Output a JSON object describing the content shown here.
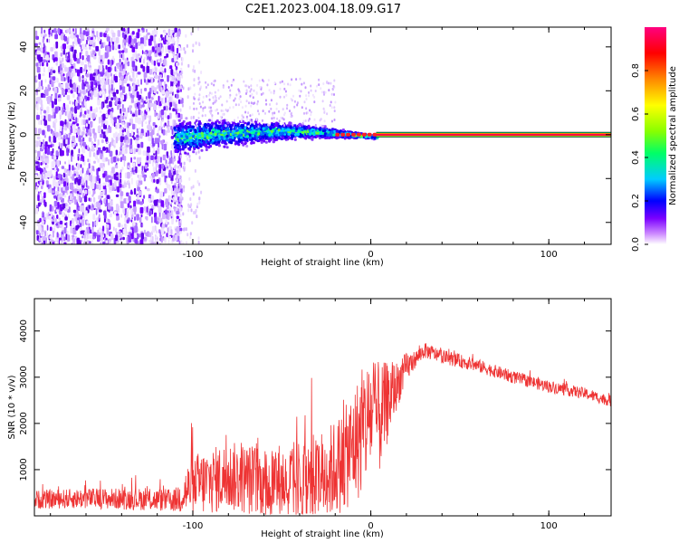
{
  "title": "C2E1.2023.004.18.09.G17",
  "chart_data": [
    {
      "type": "heatmap",
      "xlabel": "Height of straight line (km)",
      "ylabel": "Frequency (Hz)",
      "xlim": [
        -189,
        135
      ],
      "ylim": [
        -50,
        49
      ],
      "xticks": [
        -100,
        0,
        100
      ],
      "yticks": [
        -40,
        -20,
        0,
        20,
        40
      ],
      "noise_region_x": [
        -189,
        -111
      ],
      "signal_line_start_x": 3,
      "colorbar": {
        "label": "Normalized spectral amplitude",
        "range": [
          0.0,
          1.0
        ],
        "ticks": [
          0.0,
          0.2,
          0.4,
          0.6,
          0.8
        ],
        "tick_labels": [
          "0.0",
          "0.2",
          "0.4",
          "0.6",
          "0.8"
        ],
        "colors": [
          "#ffffff",
          "#cc88ff",
          "#7a00ff",
          "#0000ff",
          "#00ccff",
          "#00ff66",
          "#88ff00",
          "#ffff00",
          "#ff8800",
          "#ff0000",
          "#ff0080"
        ]
      }
    },
    {
      "type": "line",
      "xlabel": "Height of straight line (km)",
      "ylabel": "SNR (10 * v/v)",
      "xlim": [
        -189,
        135
      ],
      "ylim": [
        0,
        4700
      ],
      "xticks": [
        -100,
        0,
        100
      ],
      "yticks": [
        1000,
        2000,
        3000,
        4000
      ],
      "color": "#ee3333",
      "trend": {
        "x": [
          -189,
          -160,
          -130,
          -110,
          -100,
          -80,
          -60,
          -40,
          -25,
          -15,
          -5,
          0,
          5,
          10,
          20,
          30,
          40,
          60,
          80,
          100,
          120,
          135
        ],
        "y": [
          350,
          380,
          360,
          330,
          650,
          850,
          750,
          720,
          900,
          1200,
          1800,
          2200,
          2100,
          2500,
          3200,
          3580,
          3450,
          3250,
          3000,
          2800,
          2650,
          2480
        ]
      },
      "spread": {
        "x": [
          -189,
          -110,
          -100,
          -60,
          -25,
          -15,
          -5,
          5,
          15,
          25,
          40,
          135
        ],
        "y": [
          200,
          250,
          700,
          800,
          1000,
          1100,
          1400,
          1200,
          500,
          180,
          150,
          120
        ]
      }
    }
  ]
}
